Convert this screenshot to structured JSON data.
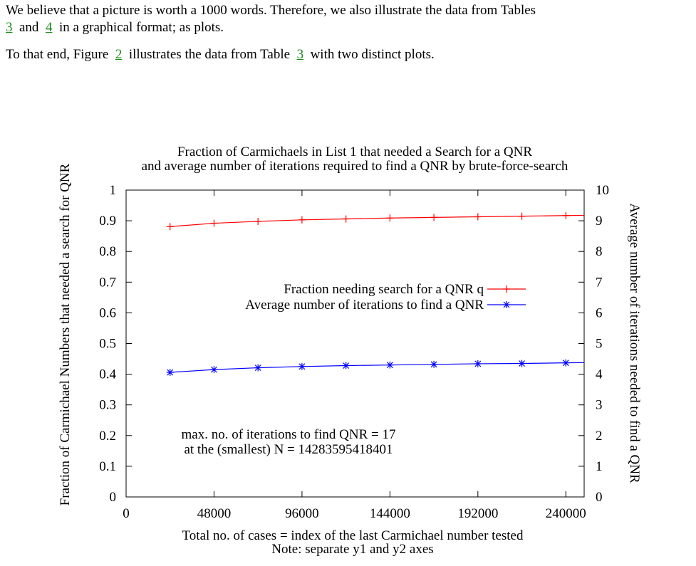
{
  "text": {
    "p1_part1": "We believe that a picture is worth a 1000 words. Therefore, we also illustrate the data from Tables",
    "p1_ref1": "3",
    "p1_and": "and",
    "p1_ref2": "4",
    "p1_part2": "in a graphical format; as plots.",
    "p2_part1": "To that end, Figure",
    "p2_ref1": "2",
    "p2_part2": "illustrates the data from Table",
    "p2_ref2": "3",
    "p2_part3": "with two distinct plots."
  },
  "chart_data": {
    "type": "line",
    "title": [
      "Fraction of Carmichaels in List 1 that needed a Search for a QNR",
      "and average number of iterations required to find a QNR by brute-force-search"
    ],
    "xlabel": "Total no. of cases = index of the last Carmichael number tested",
    "xlabel_note": "Note: separate y1 and y2 axes",
    "ylabel": "Fraction of Carmichael Numbers that needed a search for QNR",
    "y2label": "Average number of iterations needed to find a QNR",
    "xlim": [
      0,
      250000
    ],
    "ylim": [
      0,
      1
    ],
    "y2lim": [
      0,
      10
    ],
    "xticks": [
      "0",
      "48000",
      "96000",
      "144000",
      "192000",
      "240000"
    ],
    "yticks": [
      "0",
      "0.1",
      "0.2",
      "0.3",
      "0.4",
      "0.5",
      "0.6",
      "0.7",
      "0.8",
      "0.9",
      "1"
    ],
    "y2ticks": [
      "0",
      "1",
      "2",
      "3",
      "4",
      "5",
      "6",
      "7",
      "8",
      "9",
      "10"
    ],
    "grid": false,
    "legend_position": "center-right",
    "annotation": [
      "max. no. of iterations to find QNR = 17",
      "at the (smallest) N = 14283595418401"
    ],
    "x": [
      24000,
      48000,
      72000,
      96000,
      120000,
      144000,
      168000,
      192000,
      216000,
      240000
    ],
    "series": [
      {
        "name": "Fraction needing search for a QNR q",
        "axis": "y1",
        "marker": "+",
        "color": "#ff0000",
        "values": [
          0.881,
          0.892,
          0.898,
          0.903,
          0.906,
          0.909,
          0.911,
          0.913,
          0.915,
          0.917
        ]
      },
      {
        "name": "Average number of iterations to find a QNR",
        "axis": "y2",
        "marker": "*",
        "color": "#0000ff",
        "values": [
          4.06,
          4.15,
          4.21,
          4.25,
          4.28,
          4.3,
          4.32,
          4.34,
          4.35,
          4.37
        ]
      }
    ]
  }
}
